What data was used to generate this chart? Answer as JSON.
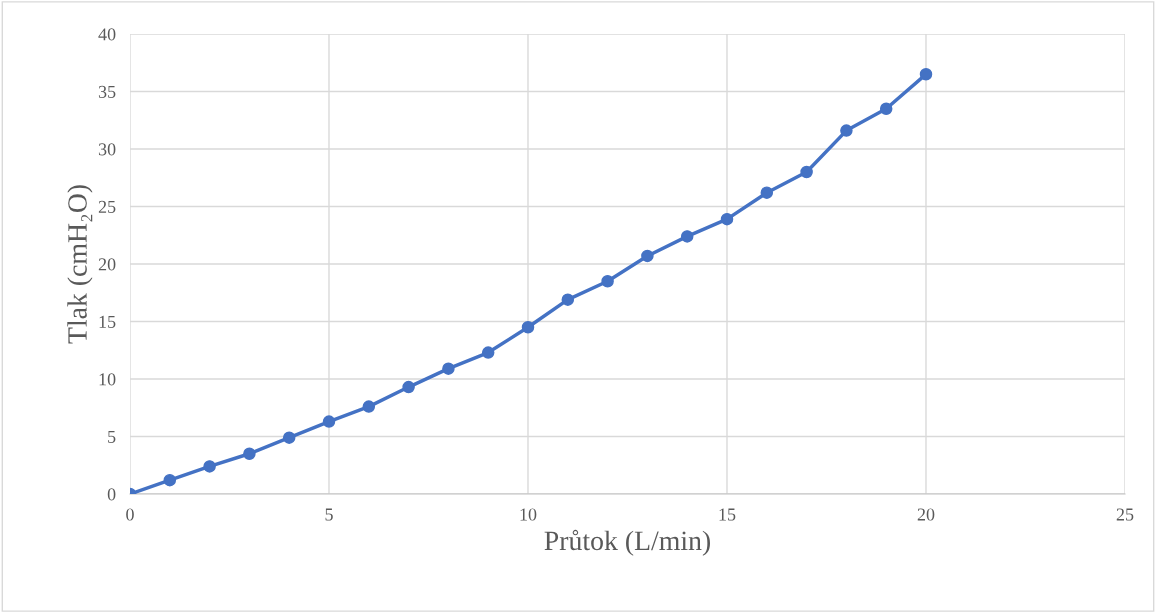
{
  "chart_data": {
    "type": "line",
    "xlabel": "Průtok (L/min)",
    "ylabel": "Tlak (cmH₂O)",
    "x": [
      0,
      1,
      2,
      3,
      4,
      5,
      6,
      7,
      8,
      9,
      10,
      11,
      12,
      13,
      14,
      15,
      16,
      17,
      18,
      19,
      20
    ],
    "series": [
      {
        "color": "#4472c4",
        "values": [
          0,
          1.2,
          2.4,
          3.5,
          4.9,
          6.3,
          7.6,
          9.3,
          10.9,
          12.3,
          14.5,
          16.9,
          18.5,
          20.7,
          22.4,
          23.9,
          26.2,
          28.0,
          31.6,
          33.5,
          36.5
        ]
      }
    ],
    "xlim": [
      0,
      25
    ],
    "xticks": [
      0,
      5,
      10,
      15,
      20,
      25
    ],
    "ylim": [
      0,
      40
    ],
    "yticks": [
      0,
      5,
      10,
      15,
      20,
      25,
      30,
      35,
      40
    ],
    "grid": true,
    "marker": "circle",
    "line_style": "solid"
  }
}
